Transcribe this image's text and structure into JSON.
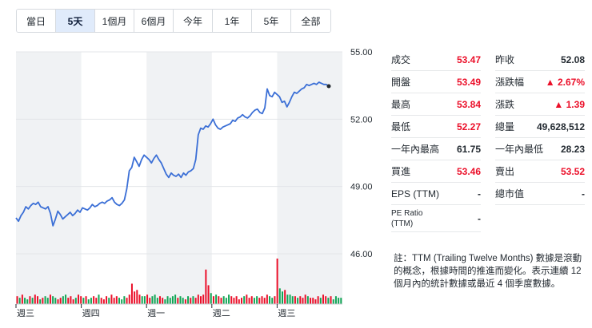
{
  "range_tabs": [
    {
      "label": "當日",
      "active": false
    },
    {
      "label": "5天",
      "active": true
    },
    {
      "label": "1個月",
      "active": false
    },
    {
      "label": "6個月",
      "active": false
    },
    {
      "label": "今年",
      "active": false
    },
    {
      "label": "1年",
      "active": false
    },
    {
      "label": "5年",
      "active": false
    },
    {
      "label": "全部",
      "active": false
    }
  ],
  "stats_left": [
    {
      "label": "成交",
      "value": "53.47",
      "color": "red"
    },
    {
      "label": "開盤",
      "value": "53.49",
      "color": "red"
    },
    {
      "label": "最高",
      "value": "53.84",
      "color": "red"
    },
    {
      "label": "最低",
      "value": "52.27",
      "color": "red"
    },
    {
      "label": "一年內最高",
      "value": "61.75",
      "color": "dark"
    },
    {
      "label": "買進",
      "value": "53.46",
      "color": "red"
    },
    {
      "label": "EPS (TTM)",
      "value": "-",
      "color": "dark"
    },
    {
      "label": "PE Ratio (TTM)",
      "value": "-",
      "color": "dark"
    }
  ],
  "stats_right": [
    {
      "label": "昨收",
      "value": "52.08",
      "color": "dark"
    },
    {
      "label": "漲跌幅",
      "value": "▲ 2.67%",
      "color": "red"
    },
    {
      "label": "漲跌",
      "value": "▲ 1.39",
      "color": "red"
    },
    {
      "label": "總量",
      "value": "49,628,512",
      "color": "dark"
    },
    {
      "label": "一年內最低",
      "value": "28.23",
      "color": "dark"
    },
    {
      "label": "賣出",
      "value": "53.52",
      "color": "red"
    },
    {
      "label": "總市值",
      "value": "-",
      "color": "dark"
    }
  ],
  "note": "註：TTM (Trailing Twelve Months) 數據是滾動的概念，根據時間的推進而變化。表示連續 12 個月內的統計數據或最近 4 個季度數據。",
  "colors": {
    "line": "#3b6fd6",
    "up": "#eb0f29",
    "down": "#10a554",
    "active_tab": "#e0ebfb",
    "band": "#f0f2f4"
  },
  "chart_data": {
    "type": "line",
    "y_ticks": [
      "55.00",
      "52.00",
      "49.00",
      "46.00"
    ],
    "ylim": [
      46.0,
      55.0
    ],
    "day_labels": [
      "週三",
      "週四",
      "週一",
      "週二",
      "週三"
    ],
    "last_value": 53.47,
    "prices": [
      47.6,
      47.45,
      47.7,
      47.85,
      48.1,
      48.0,
      48.15,
      48.25,
      48.2,
      48.3,
      48.1,
      48.05,
      48.0,
      48.1,
      47.8,
      47.25,
      47.55,
      47.9,
      47.75,
      47.55,
      47.65,
      47.75,
      47.85,
      47.7,
      47.8,
      47.95,
      47.85,
      48.05,
      48.0,
      47.95,
      48.05,
      48.2,
      48.1,
      48.15,
      48.25,
      48.3,
      48.25,
      48.35,
      48.4,
      48.5,
      48.3,
      48.2,
      48.15,
      48.25,
      48.4,
      48.9,
      49.7,
      49.85,
      50.3,
      50.1,
      49.9,
      50.2,
      50.4,
      50.3,
      50.2,
      50.05,
      50.25,
      50.4,
      50.2,
      50.05,
      49.8,
      49.55,
      49.4,
      49.6,
      49.5,
      49.45,
      49.55,
      49.4,
      49.6,
      49.5,
      49.65,
      49.7,
      49.8,
      50.2,
      51.3,
      51.6,
      51.55,
      51.7,
      51.65,
      51.8,
      52.0,
      51.75,
      51.6,
      51.55,
      51.65,
      51.7,
      51.75,
      51.8,
      51.95,
      51.9,
      52.05,
      52.1,
      52.2,
      52.1,
      52.05,
      52.15,
      52.3,
      52.4,
      52.45,
      52.3,
      52.25,
      52.5,
      53.35,
      53.05,
      53.0,
      53.2,
      53.1,
      53.0,
      52.75,
      52.8,
      52.55,
      52.75,
      53.0,
      53.2,
      53.15,
      53.25,
      53.35,
      53.4,
      53.55,
      53.5,
      53.55,
      53.6,
      53.55,
      53.65,
      53.6,
      53.55,
      53.55,
      53.47
    ],
    "volumes": [
      5,
      4,
      6,
      4,
      3,
      5,
      4,
      6,
      5,
      3,
      4,
      5,
      4,
      6,
      5,
      4,
      3,
      4,
      5,
      6,
      4,
      5,
      3,
      4,
      6,
      5,
      4,
      5,
      3,
      4,
      5,
      4,
      6,
      4,
      3,
      5,
      4,
      6,
      4,
      5,
      4,
      3,
      5,
      4,
      6,
      13,
      8,
      9,
      6,
      5,
      5,
      6,
      4,
      5,
      6,
      4,
      5,
      4,
      3,
      5,
      4,
      5,
      6,
      4,
      5,
      4,
      3,
      5,
      4,
      5,
      4,
      6,
      5,
      6,
      22,
      12,
      7,
      5,
      6,
      5,
      4,
      5,
      4,
      6,
      5,
      4,
      5,
      3,
      4,
      5,
      6,
      4,
      5,
      4,
      5,
      4,
      5,
      4,
      6,
      5,
      4,
      5,
      29,
      10,
      8,
      9,
      6,
      6,
      5,
      5,
      4,
      5,
      4,
      6,
      5,
      4,
      4,
      3,
      5,
      4,
      6,
      5,
      4,
      5,
      3,
      5,
      4,
      4
    ],
    "volume_up": [
      1,
      0,
      1,
      0,
      0,
      1,
      0,
      1,
      1,
      0,
      1,
      0,
      0,
      1,
      0,
      0,
      1,
      1,
      0,
      0,
      1,
      1,
      1,
      0,
      1,
      1,
      0,
      1,
      0,
      0,
      1,
      1,
      0,
      1,
      1,
      1,
      0,
      1,
      1,
      1,
      0,
      0,
      0,
      1,
      1,
      1,
      1,
      1,
      1,
      0,
      0,
      1,
      1,
      0,
      0,
      0,
      1,
      1,
      0,
      0,
      0,
      0,
      0,
      1,
      0,
      0,
      1,
      0,
      1,
      0,
      1,
      1,
      1,
      1,
      1,
      1,
      0,
      1,
      0,
      1,
      1,
      0,
      0,
      0,
      1,
      1,
      1,
      1,
      1,
      0,
      1,
      1,
      1,
      0,
      0,
      1,
      1,
      1,
      1,
      0,
      0,
      1,
      1,
      0,
      0,
      1,
      0,
      0,
      0,
      1,
      0,
      1,
      1,
      1,
      0,
      1,
      1,
      1,
      1,
      0,
      1,
      1,
      0,
      1,
      0,
      0,
      0,
      0
    ]
  }
}
